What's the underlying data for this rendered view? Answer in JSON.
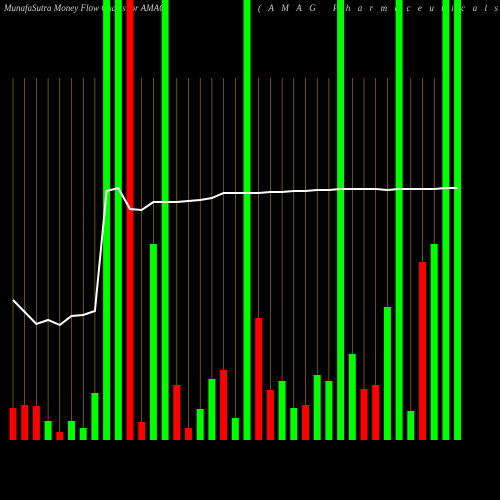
{
  "chart_data": {
    "type": "bar",
    "title": "MunafaSutra  Money Flow  Charts for AMAG",
    "subtitle": "(AMAG Pharmaceuticals",
    "categories": [
      null,
      null,
      null,
      null,
      null,
      null,
      null,
      null,
      null,
      null,
      null,
      null,
      null,
      null,
      null,
      null,
      null,
      null,
      null,
      null,
      null,
      null,
      null,
      null,
      null,
      null,
      null,
      null,
      null,
      null,
      null,
      null,
      null,
      null,
      null,
      null,
      null,
      null,
      null
    ],
    "values": [
      32,
      35,
      34,
      19,
      8,
      19,
      12,
      47,
      440,
      440,
      440,
      18,
      196,
      440,
      55,
      12,
      31,
      61,
      70,
      22,
      440,
      122,
      50,
      59,
      32,
      35,
      65,
      59,
      440,
      86,
      51,
      55,
      133,
      440,
      29,
      178,
      196,
      440,
      440
    ],
    "colors": [
      "#ff0000",
      "#ff0000",
      "#ff0000",
      "#00ff00",
      "#ff0000",
      "#00ff00",
      "#00ff00",
      "#00ff00",
      "#00ff00",
      "#00ff00",
      "#ff0000",
      "#ff0000",
      "#00ff00",
      "#00ff00",
      "#ff0000",
      "#ff0000",
      "#00ff00",
      "#00ff00",
      "#ff0000",
      "#00ff00",
      "#00ff00",
      "#ff0000",
      "#ff0000",
      "#00ff00",
      "#00ff00",
      "#ff0000",
      "#00ff00",
      "#00ff00",
      "#00ff00",
      "#00ff00",
      "#ff0000",
      "#ff0000",
      "#00ff00",
      "#00ff00",
      "#00ff00",
      "#ff0000",
      "#00ff00",
      "#00ff00",
      "#00ff00"
    ],
    "line": {
      "color": "#ffffff",
      "values": [
        140,
        128,
        116,
        120,
        115,
        124,
        125,
        129,
        249,
        252,
        231,
        230,
        238,
        238,
        238,
        239,
        240,
        242,
        247,
        247,
        247,
        247,
        248,
        248,
        249,
        249,
        250,
        250,
        251,
        251,
        251,
        251,
        250,
        251,
        251,
        251,
        251,
        252,
        252
      ]
    },
    "ylim": [
      0,
      440
    ],
    "grid": true,
    "grid_color": "#b8860b"
  }
}
